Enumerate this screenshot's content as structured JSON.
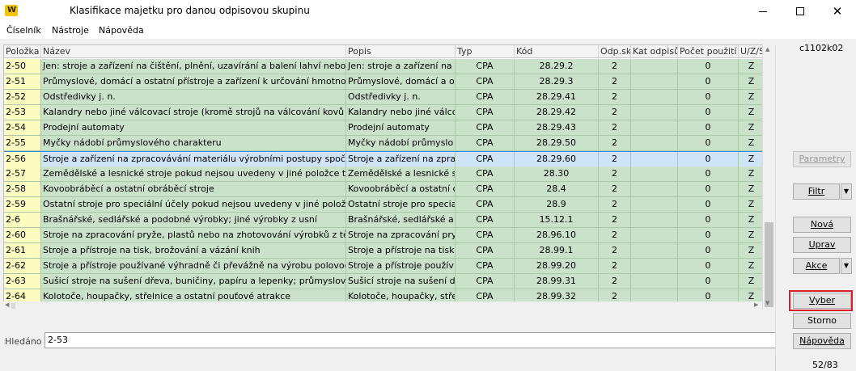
{
  "window": {
    "title": "Klasifikace majetku pro danou odpisovou skupinu",
    "logo_text": "W"
  },
  "menu": [
    "Číselník",
    "Nástroje",
    "Nápověda"
  ],
  "form_code": "c1102k02",
  "table": {
    "columns": [
      "Položka",
      "Název",
      "Popis",
      "Typ",
      "Kód",
      "Odp.sk",
      "Kat odpisů",
      "Počet použití",
      "U/Z/S"
    ],
    "rows": [
      [
        "2-50",
        "Jen: stroje a zařízení na čištění, plnění, uzavírání a balení lahví nebo j",
        "Jen: stroje a zařízení na č",
        "CPA",
        "28.29.2",
        "2",
        "",
        "0",
        "Z"
      ],
      [
        "2-51",
        "Průmyslové, domácí a ostatní přístroje a zařízení k určování hmotnos",
        "Průmyslové, domácí a os",
        "CPA",
        "28.29.3",
        "2",
        "",
        "0",
        "Z"
      ],
      [
        "2-52",
        "Odstředivky j. n.",
        "Odstředivky j. n.",
        "CPA",
        "28.29.41",
        "2",
        "",
        "0",
        "Z"
      ],
      [
        "2-53",
        "Kalandry nebo jiné válcovací stroje (kromě strojů na válcování kovů",
        "Kalandry nebo jiné válco",
        "CPA",
        "28.29.42",
        "2",
        "",
        "0",
        "Z"
      ],
      [
        "2-54",
        "Prodejní automaty",
        "Prodejní automaty",
        "CPA",
        "28.29.43",
        "2",
        "",
        "0",
        "Z"
      ],
      [
        "2-55",
        "Myčky nádobí průmyslového charakteru",
        "Myčky nádobí průmyslo",
        "CPA",
        "28.29.50",
        "2",
        "",
        "0",
        "Z"
      ],
      [
        "2-56",
        "Stroje a zařízení na zpracovávání materiálu výrobními postupy spoči",
        "Stroje a zařízení na zpra",
        "CPA",
        "28.29.60",
        "2",
        "",
        "0",
        "Z"
      ],
      [
        "2-57",
        "Zemědělské a lesnické stroje pokud nejsou uvedeny v jiné položce tét",
        "Zemědělské a lesnické st",
        "CPA",
        "28.30",
        "2",
        "",
        "0",
        "Z"
      ],
      [
        "2-58",
        "Kovoobráběcí a ostatní obráběcí stroje",
        "Kovoobráběcí a ostatní c",
        "CPA",
        "28.4",
        "2",
        "",
        "0",
        "Z"
      ],
      [
        "2-59",
        "Ostatní stroje pro speciální účely pokud nejsou uvedeny v jiné polož",
        "Ostatní stroje pro specia",
        "CPA",
        "28.9",
        "2",
        "",
        "0",
        "Z"
      ],
      [
        "2-6",
        "Brašnářské, sedlářské a podobné výrobky; jiné výrobky z usní",
        "Brašnářské, sedlářské a",
        "CPA",
        "15.12.1",
        "2",
        "",
        "0",
        "Z"
      ],
      [
        "2-60",
        "Stroje na zpracování pryže, plastů nebo na zhotovování výrobků z těc",
        "Stroje na zpracování pry",
        "CPA",
        "28.96.10",
        "2",
        "",
        "0",
        "Z"
      ],
      [
        "2-61",
        "Stroje a přístroje na tisk, brožování a vázání knih",
        "Stroje a přístroje na tisk",
        "CPA",
        "28.99.1",
        "2",
        "",
        "0",
        "Z"
      ],
      [
        "2-62",
        "Stroje a přístroje používané výhradně či převážně na výrobu polovod",
        "Stroje a přístroje použív",
        "CPA",
        "28.99.20",
        "2",
        "",
        "0",
        "Z"
      ],
      [
        "2-63",
        "Sušicí stroje na sušení dřeva, buničiny, papíru a lepenky; průmyslové",
        "Sušicí stroje na sušení d",
        "CPA",
        "28.99.31",
        "2",
        "",
        "0",
        "Z"
      ],
      [
        "2-64",
        "Kolotoče, houpačky, střelnice a ostatní pouťové atrakce",
        "Kolotoče, houpačky, stře",
        "CPA",
        "28.99.32",
        "2",
        "",
        "0",
        "Z"
      ]
    ],
    "selected_row": 6
  },
  "search": {
    "label": "Hledáno :",
    "value": "2-53"
  },
  "buttons": {
    "parametry": "Parametry",
    "filtr": "Filtr",
    "nova": "Nová",
    "uprav": "Uprav",
    "akce": "Akce",
    "vyber": "Vyber",
    "storno": "Storno",
    "napoveda": "Nápověda"
  },
  "status": {
    "record_count": "52/83"
  },
  "colors": {
    "row_green": "#c9e2c9",
    "key_yellow": "#fcfcc0",
    "selected_blue": "#cfe4f7",
    "highlight_red": "#d81f2a"
  }
}
